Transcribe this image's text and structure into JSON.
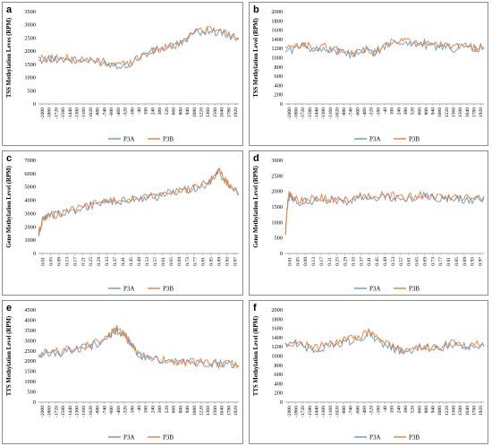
{
  "figure": {
    "legend": [
      "P3A",
      "P3B"
    ],
    "colors": {
      "P3A": "#5b9bd5",
      "P3B": "#ed7d31",
      "axis": "#8c8c8c",
      "text": "#000000"
    }
  },
  "chart_data": [
    {
      "id": "a",
      "type": "line",
      "ylabel": "TSS Methylation Leves (RPM)",
      "ylim": [
        0,
        3500
      ],
      "yticks": [
        0,
        500,
        1000,
        1500,
        2000,
        2500,
        3000,
        3500
      ],
      "xlim": [
        -2000,
        2000
      ],
      "xtick_labels": [
        "-2000",
        "-1860",
        "-1720",
        "-1580",
        "-1440",
        "-1300",
        "-1160",
        "-1020",
        "-880",
        "-740",
        "-600",
        "-460",
        "-320",
        "-180",
        "-40",
        "100",
        "240",
        "380",
        "520",
        "660",
        "800",
        "940",
        "1080",
        "1220",
        "1360",
        "1500",
        "1640",
        "1780",
        "1920"
      ],
      "legend": "bottom",
      "series": [
        {
          "name": "P3A",
          "x": [
            -2000,
            -1800,
            -1600,
            -1400,
            -1200,
            -1000,
            -800,
            -600,
            -400,
            -200,
            0,
            200,
            400,
            600,
            800,
            1000,
            1200,
            1400,
            1600,
            1800,
            2000
          ],
          "values": [
            1650,
            1700,
            1720,
            1680,
            1650,
            1620,
            1600,
            1530,
            1480,
            1500,
            1750,
            1950,
            2050,
            2150,
            2250,
            2550,
            2750,
            2780,
            2720,
            2600,
            2450
          ]
        },
        {
          "name": "P3B",
          "x": [
            -2000,
            -1800,
            -1600,
            -1400,
            -1200,
            -1000,
            -800,
            -600,
            -400,
            -200,
            0,
            200,
            400,
            600,
            800,
            1000,
            1200,
            1400,
            1600,
            1800,
            2000
          ],
          "values": [
            1700,
            1720,
            1750,
            1700,
            1670,
            1640,
            1620,
            1560,
            1500,
            1520,
            1780,
            1980,
            2080,
            2180,
            2280,
            2600,
            2800,
            2820,
            2760,
            2640,
            2500
          ]
        }
      ]
    },
    {
      "id": "b",
      "type": "line",
      "ylabel": "TSS Methylation Level (RPM)",
      "ylim": [
        0,
        2000
      ],
      "yticks": [
        0,
        200,
        400,
        600,
        800,
        1000,
        1200,
        1400,
        1600,
        1800,
        2000
      ],
      "xlim": [
        -2000,
        2000
      ],
      "xtick_labels": [
        "-2000",
        "-1860",
        "-1720",
        "-1580",
        "-1440",
        "-1300",
        "-1160",
        "-1020",
        "-880",
        "-740",
        "-600",
        "-460",
        "-320",
        "-180",
        "-40",
        "100",
        "240",
        "380",
        "520",
        "660",
        "800",
        "940",
        "1080",
        "1220",
        "1360",
        "1500",
        "1640",
        "1780",
        "1920"
      ],
      "legend": "bottom",
      "series": [
        {
          "name": "P3A",
          "x": [
            -2000,
            -1800,
            -1600,
            -1400,
            -1200,
            -1000,
            -800,
            -600,
            -400,
            -200,
            0,
            200,
            400,
            600,
            800,
            1000,
            1200,
            1400,
            1600,
            1800,
            2000
          ],
          "values": [
            1150,
            1200,
            1250,
            1180,
            1200,
            1150,
            1100,
            1050,
            1150,
            1100,
            1250,
            1300,
            1350,
            1300,
            1280,
            1250,
            1220,
            1200,
            1250,
            1180,
            1200
          ]
        },
        {
          "name": "P3B",
          "x": [
            -2000,
            -1800,
            -1600,
            -1400,
            -1200,
            -1000,
            -800,
            -600,
            -400,
            -200,
            0,
            200,
            400,
            600,
            800,
            1000,
            1200,
            1400,
            1600,
            1800,
            2000
          ],
          "values": [
            1180,
            1230,
            1280,
            1210,
            1230,
            1180,
            1130,
            1080,
            1180,
            1130,
            1280,
            1330,
            1380,
            1330,
            1310,
            1280,
            1250,
            1230,
            1280,
            1210,
            1230
          ]
        }
      ]
    },
    {
      "id": "c",
      "type": "line",
      "ylabel": "Gene Methylation Level (RPM)",
      "ylim": [
        0,
        7000
      ],
      "yticks": [
        0,
        1000,
        2000,
        3000,
        4000,
        5000,
        6000,
        7000
      ],
      "xlim": [
        0.01,
        1.0
      ],
      "xtick_labels": [
        "0.01",
        "0.05",
        "0.09",
        "0.13",
        "0.17",
        "0.21",
        "0.25",
        "0.29",
        "0.33",
        "0.37",
        "0.41",
        "0.45",
        "0.49",
        "0.53",
        "0.57",
        "0.61",
        "0.65",
        "0.69",
        "0.73",
        "0.77",
        "0.81",
        "0.85",
        "0.89",
        "0.93",
        "0.97"
      ],
      "legend": "bottom",
      "series": [
        {
          "name": "P3A",
          "x": [
            0.01,
            0.03,
            0.05,
            0.1,
            0.15,
            0.2,
            0.25,
            0.3,
            0.35,
            0.4,
            0.45,
            0.5,
            0.55,
            0.6,
            0.65,
            0.7,
            0.75,
            0.8,
            0.85,
            0.88,
            0.9,
            0.93,
            0.96,
            1.0
          ],
          "values": [
            1300,
            2500,
            2700,
            2900,
            3100,
            3300,
            3500,
            3700,
            3800,
            3900,
            4000,
            4100,
            4200,
            4300,
            4500,
            4600,
            4800,
            5000,
            5300,
            5800,
            6200,
            5500,
            5000,
            4400
          ]
        },
        {
          "name": "P3B",
          "x": [
            0.01,
            0.03,
            0.05,
            0.1,
            0.15,
            0.2,
            0.25,
            0.3,
            0.35,
            0.4,
            0.45,
            0.5,
            0.55,
            0.6,
            0.65,
            0.7,
            0.75,
            0.8,
            0.85,
            0.88,
            0.9,
            0.93,
            0.96,
            1.0
          ],
          "values": [
            1350,
            2550,
            2750,
            2950,
            3150,
            3350,
            3550,
            3750,
            3850,
            3950,
            4050,
            4150,
            4250,
            4350,
            4550,
            4650,
            4850,
            5050,
            5350,
            5850,
            6250,
            5550,
            5050,
            4450
          ]
        }
      ]
    },
    {
      "id": "d",
      "type": "line",
      "ylabel": "Gene Methylation Level (RPM)",
      "ylim": [
        0,
        3000
      ],
      "yticks": [
        0,
        500,
        1000,
        1500,
        2000,
        2500,
        3000
      ],
      "xlim": [
        0.01,
        1.0
      ],
      "xtick_labels": [
        "0.01",
        "0.05",
        "0.09",
        "0.13",
        "0.17",
        "0.21",
        "0.25",
        "0.29",
        "0.33",
        "0.37",
        "0.41",
        "0.45",
        "0.49",
        "0.53",
        "0.57",
        "0.61",
        "0.65",
        "0.69",
        "0.73",
        "0.77",
        "0.81",
        "0.85",
        "0.89",
        "0.93",
        "0.97"
      ],
      "legend": "bottom",
      "series": [
        {
          "name": "P3A",
          "x": [
            0.01,
            0.02,
            0.03,
            0.05,
            0.1,
            0.15,
            0.2,
            0.25,
            0.3,
            0.35,
            0.4,
            0.45,
            0.5,
            0.55,
            0.6,
            0.65,
            0.7,
            0.75,
            0.8,
            0.85,
            0.9,
            0.95,
            1.0
          ],
          "values": [
            600,
            1500,
            1900,
            1700,
            1650,
            1700,
            1750,
            1700,
            1650,
            1750,
            1800,
            1750,
            1850,
            1800,
            1700,
            1800,
            1850,
            1800,
            1750,
            1800,
            1750,
            1700,
            1800
          ]
        },
        {
          "name": "P3B",
          "x": [
            0.01,
            0.02,
            0.03,
            0.05,
            0.1,
            0.15,
            0.2,
            0.25,
            0.3,
            0.35,
            0.4,
            0.45,
            0.5,
            0.55,
            0.6,
            0.65,
            0.7,
            0.75,
            0.8,
            0.85,
            0.9,
            0.95,
            1.0
          ],
          "values": [
            650,
            1550,
            1950,
            1750,
            1700,
            1750,
            1800,
            1750,
            1700,
            1800,
            1850,
            1800,
            1900,
            1850,
            1750,
            1850,
            1900,
            1850,
            1800,
            1850,
            1800,
            1750,
            1850
          ]
        }
      ]
    },
    {
      "id": "e",
      "type": "line",
      "ylabel": "TTS Methylation Level (RPM)",
      "ylim": [
        0,
        4500
      ],
      "yticks": [
        0,
        500,
        1000,
        1500,
        2000,
        2500,
        3000,
        3500,
        4000,
        4500
      ],
      "xlim": [
        -2000,
        2000
      ],
      "xtick_labels": [
        "-2000",
        "-1860",
        "-1720",
        "-1580",
        "-1440",
        "-1300",
        "-1160",
        "-1020",
        "-880",
        "-740",
        "-600",
        "-460",
        "-320",
        "-180",
        "-40",
        "100",
        "240",
        "380",
        "520",
        "660",
        "800",
        "940",
        "1080",
        "1220",
        "1360",
        "1500",
        "1640",
        "1780",
        "1920"
      ],
      "legend": "bottom",
      "series": [
        {
          "name": "P3A",
          "x": [
            -2000,
            -1800,
            -1600,
            -1400,
            -1200,
            -1000,
            -800,
            -600,
            -500,
            -400,
            -300,
            -200,
            -100,
            0,
            200,
            400,
            600,
            800,
            1000,
            1200,
            1400,
            1600,
            1800,
            2000
          ],
          "values": [
            2300,
            2350,
            2400,
            2500,
            2600,
            2700,
            2900,
            3200,
            3400,
            3500,
            3300,
            3000,
            2700,
            2300,
            2100,
            2000,
            1950,
            1950,
            1900,
            1900,
            1850,
            1850,
            1800,
            1750
          ]
        },
        {
          "name": "P3B",
          "x": [
            -2000,
            -1800,
            -1600,
            -1400,
            -1200,
            -1000,
            -800,
            -600,
            -500,
            -400,
            -300,
            -200,
            -100,
            0,
            200,
            400,
            600,
            800,
            1000,
            1200,
            1400,
            1600,
            1800,
            2000
          ],
          "values": [
            2350,
            2400,
            2450,
            2550,
            2650,
            2750,
            2950,
            3250,
            3450,
            3600,
            3350,
            3050,
            2750,
            2350,
            2150,
            2050,
            2000,
            2000,
            1950,
            1950,
            1900,
            1900,
            1850,
            1800
          ]
        }
      ]
    },
    {
      "id": "f",
      "type": "line",
      "ylabel": "TTS Methylation Level (RPM)",
      "ylim": [
        0,
        2000
      ],
      "yticks": [
        0,
        200,
        400,
        600,
        800,
        1000,
        1200,
        1400,
        1600,
        1800,
        2000
      ],
      "xlim": [
        -2000,
        2000
      ],
      "xtick_labels": [
        "-2000",
        "-1860",
        "-1720",
        "-1580",
        "-1440",
        "-1300",
        "-1160",
        "-1020",
        "-880",
        "-740",
        "-600",
        "-460",
        "-320",
        "-180",
        "-40",
        "100",
        "240",
        "380",
        "520",
        "660",
        "800",
        "940",
        "1080",
        "1220",
        "1360",
        "1500",
        "1640",
        "1780",
        "1920"
      ],
      "legend": "bottom",
      "series": [
        {
          "name": "P3A",
          "x": [
            -2000,
            -1800,
            -1600,
            -1400,
            -1200,
            -1000,
            -800,
            -600,
            -400,
            -300,
            -200,
            0,
            200,
            400,
            600,
            800,
            1000,
            1200,
            1400,
            1600,
            1800,
            2000
          ],
          "values": [
            1200,
            1250,
            1200,
            1150,
            1200,
            1250,
            1300,
            1350,
            1450,
            1500,
            1400,
            1250,
            1150,
            1100,
            1150,
            1200,
            1150,
            1200,
            1250,
            1200,
            1250,
            1200
          ]
        },
        {
          "name": "P3B",
          "x": [
            -2000,
            -1800,
            -1600,
            -1400,
            -1200,
            -1000,
            -800,
            -600,
            -400,
            -300,
            -200,
            0,
            200,
            400,
            600,
            800,
            1000,
            1200,
            1400,
            1600,
            1800,
            2000
          ],
          "values": [
            1230,
            1280,
            1230,
            1180,
            1230,
            1280,
            1330,
            1380,
            1480,
            1530,
            1430,
            1280,
            1180,
            1130,
            1180,
            1230,
            1180,
            1230,
            1280,
            1230,
            1280,
            1230
          ]
        }
      ]
    }
  ]
}
